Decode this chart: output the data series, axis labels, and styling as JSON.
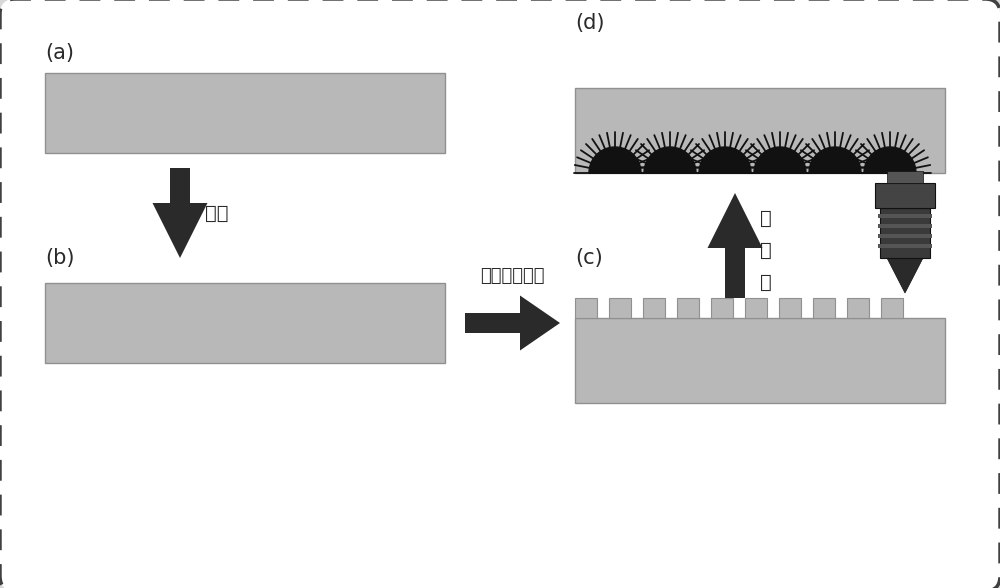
{
  "bg_color": "#d8d8d8",
  "border_color": "#404040",
  "slab_color": "#b8b8b8",
  "slab_edge": "#909090",
  "dark_color": "#2a2a2a",
  "white_bg": "#ffffff",
  "label_a": "(a)",
  "label_b": "(b)",
  "label_c": "(c)",
  "label_d": "(d)",
  "text_plating": "镍膜",
  "text_femto": "飞秒激光加工",
  "text_oxidize1": "热",
  "text_oxidize2": "氧",
  "text_oxidize3": "化",
  "font_size_label": 15,
  "font_size_text": 14,
  "figw": 10.0,
  "figh": 5.88
}
